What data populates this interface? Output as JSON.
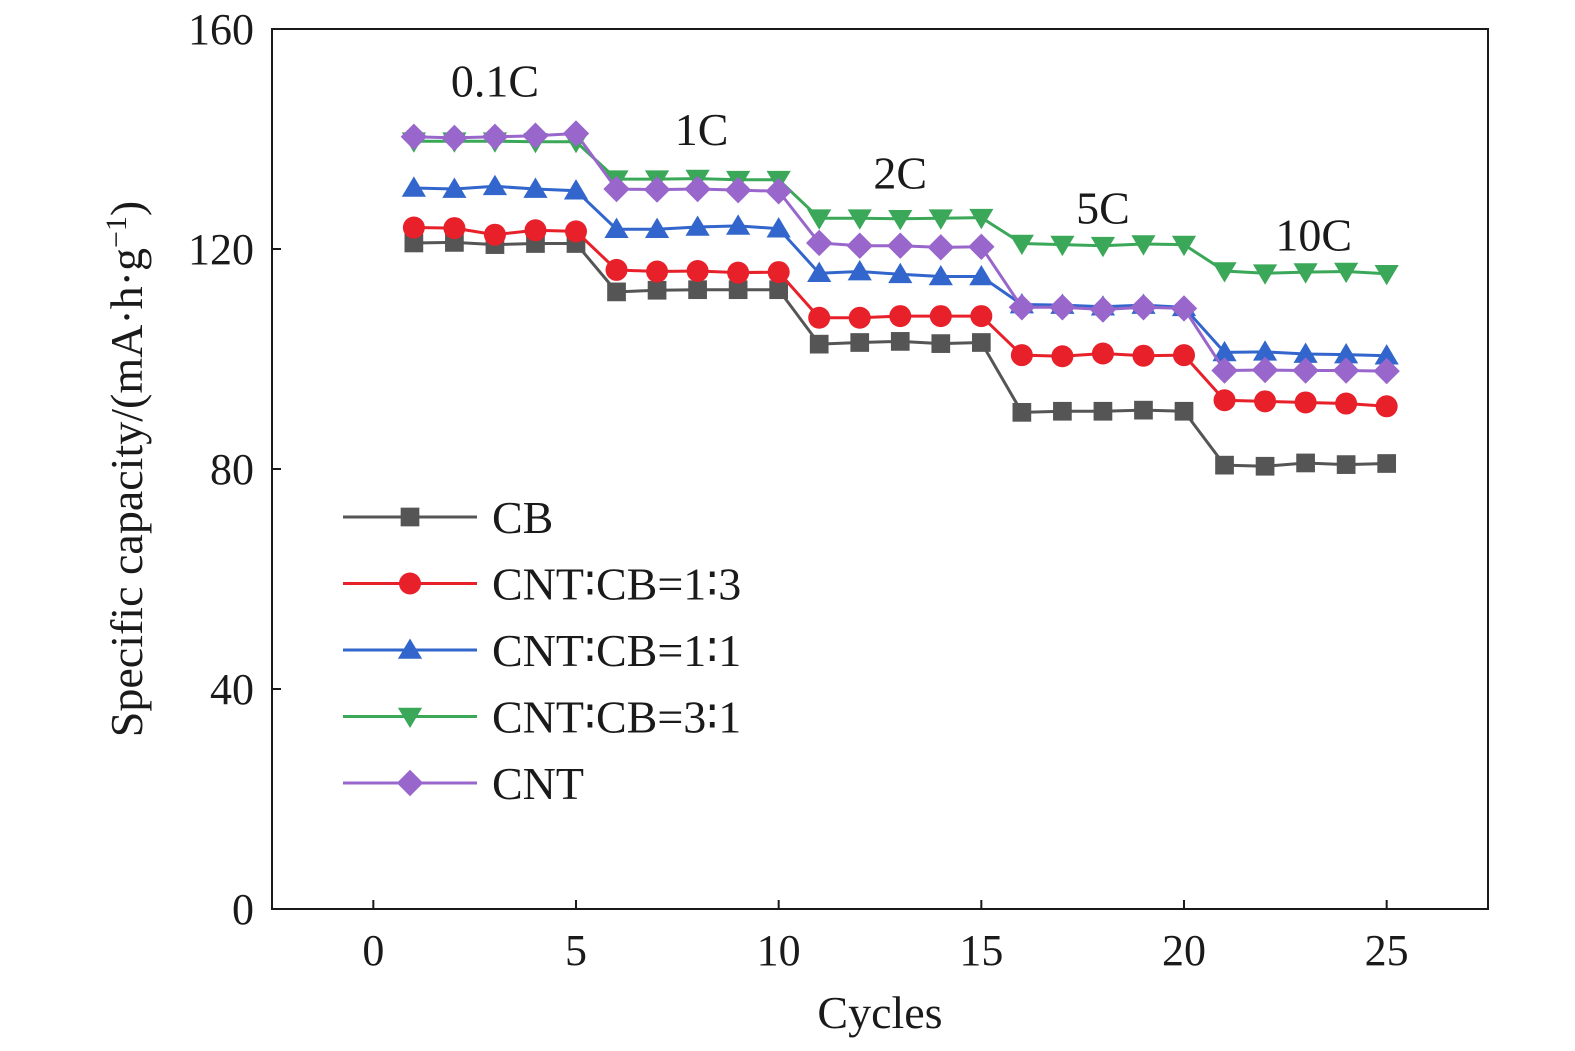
{
  "chart_data": {
    "type": "line",
    "title": "",
    "xlabel": "Cycles",
    "ylabel_main": "Specific capacity/(mA·h·g",
    "ylabel_sup": "−1",
    "ylabel_end": ")",
    "xlim": [
      -2.5,
      27.5
    ],
    "ylim": [
      0,
      160
    ],
    "xticks": [
      0,
      5,
      10,
      15,
      20,
      25
    ],
    "yticks": [
      0,
      40,
      80,
      120,
      160
    ],
    "grid": false,
    "legend_position": "left-middle",
    "x": [
      1,
      2,
      3,
      4,
      5,
      6,
      7,
      8,
      9,
      10,
      11,
      12,
      13,
      14,
      15,
      16,
      17,
      18,
      19,
      20,
      21,
      22,
      23,
      24,
      25
    ],
    "series": [
      {
        "name": "CB",
        "color": "#555555",
        "marker": "square",
        "values": [
          121.1,
          121.2,
          120.8,
          121.0,
          121.0,
          112.2,
          112.5,
          112.6,
          112.6,
          112.6,
          102.7,
          103.0,
          103.2,
          102.8,
          103.0,
          90.3,
          90.5,
          90.5,
          90.7,
          90.5,
          80.7,
          80.5,
          81.1,
          80.8,
          81.0
        ]
      },
      {
        "name": "CNT∶CB=1∶3",
        "color": "#e8202a",
        "marker": "circle",
        "values": [
          123.9,
          123.8,
          122.6,
          123.4,
          123.2,
          116.2,
          115.9,
          116.0,
          115.7,
          115.8,
          107.5,
          107.5,
          107.8,
          107.8,
          107.8,
          100.7,
          100.5,
          101.0,
          100.6,
          100.7,
          92.5,
          92.3,
          92.1,
          91.9,
          91.4
        ]
      },
      {
        "name": "CNT∶CB=1∶1",
        "color": "#3366cc",
        "marker": "triangle-up",
        "values": [
          131.1,
          130.9,
          131.4,
          130.9,
          130.6,
          123.6,
          123.6,
          124.0,
          124.2,
          123.7,
          115.6,
          115.9,
          115.4,
          115.0,
          115.0,
          109.9,
          109.8,
          109.5,
          109.8,
          109.4,
          101.2,
          101.3,
          100.9,
          100.8,
          100.6
        ]
      },
      {
        "name": "CNT∶CB=3∶1",
        "color": "#3aa858",
        "marker": "triangle-down",
        "values": [
          139.6,
          139.6,
          139.6,
          139.5,
          139.5,
          132.7,
          132.7,
          132.8,
          132.6,
          132.6,
          125.6,
          125.6,
          125.5,
          125.6,
          125.7,
          121.0,
          120.8,
          120.6,
          120.9,
          120.8,
          116.0,
          115.6,
          115.8,
          115.9,
          115.5
        ]
      },
      {
        "name": "CNT",
        "color": "#9966cc",
        "marker": "diamond",
        "values": [
          140.4,
          140.2,
          140.4,
          140.6,
          141.0,
          130.9,
          130.8,
          130.9,
          130.7,
          130.5,
          121.1,
          120.6,
          120.6,
          120.3,
          120.4,
          109.4,
          109.4,
          109.0,
          109.4,
          109.2,
          97.9,
          98.0,
          97.9,
          97.9,
          97.8
        ]
      }
    ],
    "annotations": [
      {
        "text": "0.1C",
        "x": 3.0,
        "y": 150.5
      },
      {
        "text": "1C",
        "x": 8.1,
        "y": 141.6
      },
      {
        "text": "2C",
        "x": 13.0,
        "y": 133.7
      },
      {
        "text": "5C",
        "x": 18.0,
        "y": 127.4
      },
      {
        "text": "10C",
        "x": 23.2,
        "y": 122.5
      }
    ]
  }
}
